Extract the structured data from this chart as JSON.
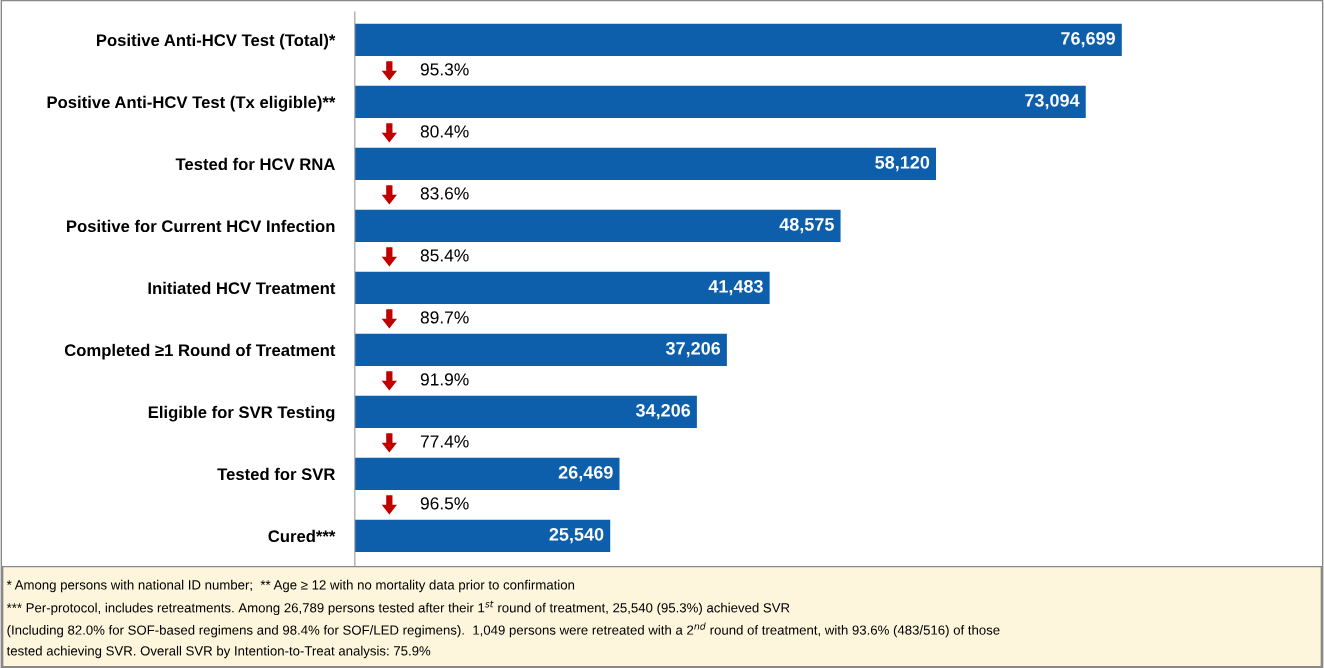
{
  "chart_data": {
    "type": "bar",
    "orientation": "horizontal",
    "tick_labels": "y",
    "data_labels": true,
    "grid": false,
    "categories": [
      "Positive Anti-HCV Test (Total)*",
      "Positive Anti-HCV Test (Tx eligible)**",
      "Tested for HCV RNA",
      "Positive for Current HCV Infection",
      "Initiated HCV Treatment",
      "Completed ≥1 Round of Treatment",
      "Eligible for SVR Testing",
      "Tested for SVR",
      "Cured***"
    ],
    "values": [
      76699,
      73094,
      58120,
      48575,
      41483,
      37206,
      34206,
      26469,
      25540
    ],
    "value_labels": [
      "76,699",
      "73,094",
      "58,120",
      "48,575",
      "41,483",
      "37,206",
      "34,206",
      "26,469",
      "25,540"
    ],
    "color": "#0d5eab",
    "annotations": [
      "95.3%",
      "80.4%",
      "83.6%",
      "85.4%",
      "89.7%",
      "91.9%",
      "77.4%",
      "96.5%",
      "* Among persons with national ID number;  ** Age ≥ 12 with no mortality data prior to confirmation",
      "*** Per-protocol, includes retreatments. Among 26,789 persons tested after their 1$^{st}$ round of treatment, 25,540 (95.3%) achieved SVR",
      "(Including 82.0% for SOF-based regimens and 98.4% for SOF/LED regimens).  1,049 persons were retreated with a 2$^{nd}$ round of treatment, with 93.6% (483/516) of those",
      "tested achieving SVR. Overall SVR by Intention-to-Treat analysis: 75.9%"
    ]
  }
}
